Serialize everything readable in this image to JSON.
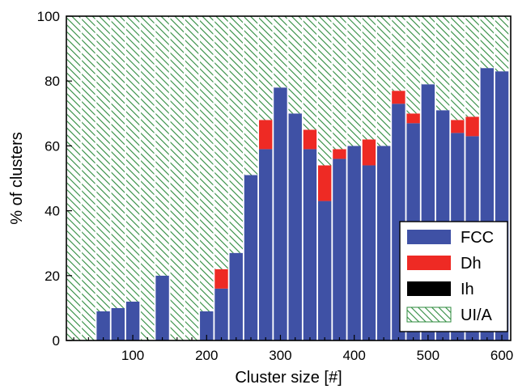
{
  "chart_data": {
    "type": "bar",
    "stacked": true,
    "xlabel": "Cluster size [#]",
    "ylabel": "% of clusters",
    "xlim": [
      10,
      612
    ],
    "ylim": [
      0,
      100
    ],
    "xticks": [
      100,
      200,
      300,
      400,
      500,
      600
    ],
    "yticks": [
      0,
      20,
      40,
      60,
      80,
      100
    ],
    "bar_width": 18,
    "x": [
      20,
      40,
      60,
      80,
      100,
      120,
      140,
      160,
      180,
      200,
      220,
      240,
      260,
      280,
      300,
      320,
      340,
      360,
      380,
      400,
      420,
      440,
      460,
      480,
      500,
      520,
      540,
      560,
      580,
      600
    ],
    "series": [
      {
        "name": "FCC",
        "color": "#3f51a5",
        "pattern": "solid",
        "values": [
          0,
          0,
          9,
          10,
          12,
          0,
          20,
          0,
          0,
          9,
          16,
          27,
          51,
          59,
          78,
          70,
          59,
          43,
          56,
          60,
          54,
          60,
          73,
          67,
          79,
          71,
          64,
          63,
          84,
          83
        ]
      },
      {
        "name": "Dh",
        "color": "#ee2a24",
        "pattern": "solid",
        "values": [
          0,
          0,
          0,
          0,
          0,
          0,
          0,
          0,
          0,
          0,
          6,
          0,
          0,
          9,
          0,
          0,
          6,
          11,
          3,
          0,
          8,
          0,
          4,
          3,
          0,
          0,
          4,
          6,
          0,
          0
        ]
      },
      {
        "name": "Ih",
        "color": "#000000",
        "pattern": "solid",
        "values": [
          0,
          0,
          0,
          0,
          0,
          0,
          0,
          0,
          0,
          0,
          0,
          0,
          0,
          0,
          0,
          0,
          0,
          0,
          0,
          0,
          0,
          0,
          0,
          0,
          0,
          0,
          0,
          0,
          0,
          0
        ]
      },
      {
        "name": "UI/A",
        "color": "#2e8b3e",
        "pattern": "hatch",
        "values": [
          100,
          100,
          91,
          90,
          88,
          100,
          80,
          100,
          100,
          91,
          78,
          73,
          49,
          32,
          22,
          30,
          35,
          46,
          41,
          40,
          38,
          40,
          23,
          30,
          21,
          29,
          32,
          31,
          16,
          17
        ]
      }
    ],
    "legend_position": "bottom-right",
    "grid": false
  }
}
